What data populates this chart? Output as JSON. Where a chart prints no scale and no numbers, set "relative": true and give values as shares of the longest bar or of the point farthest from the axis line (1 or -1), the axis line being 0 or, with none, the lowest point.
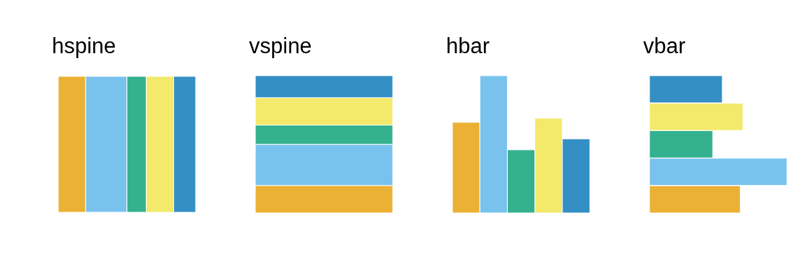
{
  "chart_data": [
    {
      "type": "bar",
      "title": "hspine",
      "orientation": "horizontal",
      "stacked": true,
      "relative": true,
      "categories": [
        null
      ],
      "series": [
        {
          "color": "#ebb134",
          "values": [
            0.2
          ]
        },
        {
          "color": "#79c2ed",
          "values": [
            0.3
          ]
        },
        {
          "color": "#34b18f",
          "values": [
            0.14
          ]
        },
        {
          "color": "#f3e96a",
          "values": [
            0.2
          ]
        },
        {
          "color": "#348fc4",
          "values": [
            0.16
          ]
        }
      ]
    },
    {
      "type": "bar",
      "title": "vspine",
      "stacked": true,
      "relative": true,
      "categories": [
        null
      ],
      "series": [
        {
          "color": "#ebb134",
          "values": [
            0.2
          ]
        },
        {
          "color": "#79c2ed",
          "values": [
            0.3
          ]
        },
        {
          "color": "#34b18f",
          "values": [
            0.14
          ]
        },
        {
          "color": "#f3e96a",
          "values": [
            0.2
          ]
        },
        {
          "color": "#348fc4",
          "values": [
            0.16
          ]
        }
      ]
    },
    {
      "type": "bar",
      "title": "hbar",
      "relative": true,
      "categories": [
        null,
        null,
        null,
        null,
        null
      ],
      "values": [
        0.66,
        1,
        0.46,
        0.69,
        0.54
      ],
      "colors": [
        "#ebb134",
        "#79c2ed",
        "#34b18f",
        "#f3e96a",
        "#348fc4"
      ]
    },
    {
      "type": "bar",
      "title": "vbar",
      "orientation": "horizontal",
      "relative": true,
      "categories": [
        null,
        null,
        null,
        null,
        null
      ],
      "values": [
        0.53,
        0.68,
        0.46,
        1,
        0.66
      ],
      "colors": [
        "#348fc4",
        "#f3e96a",
        "#34b18f",
        "#79c2ed",
        "#ebb134"
      ]
    }
  ]
}
